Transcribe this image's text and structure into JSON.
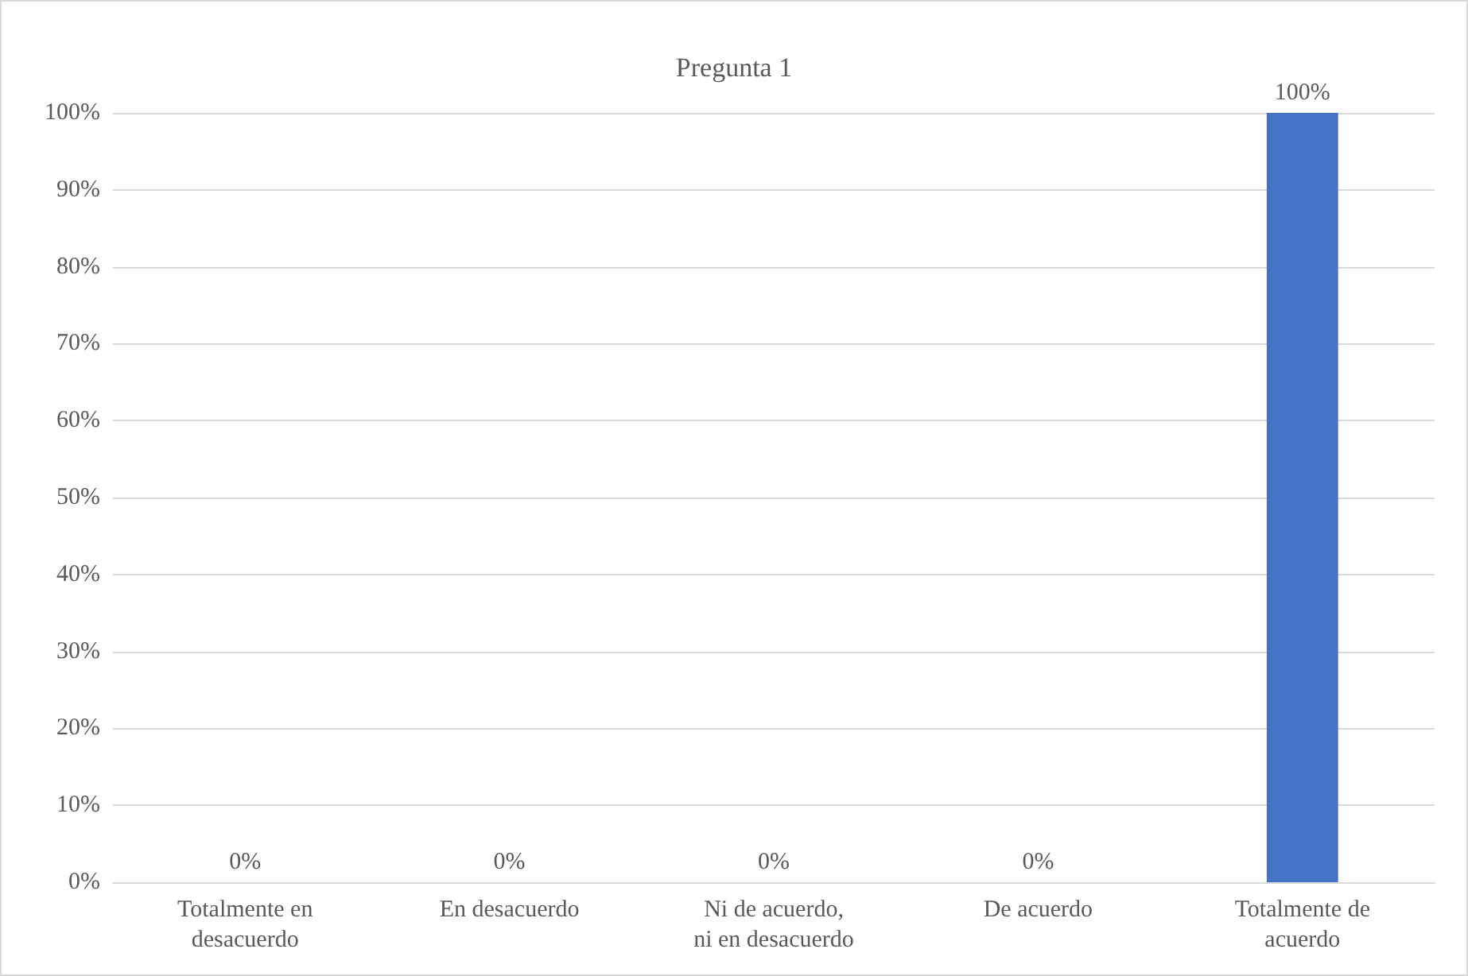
{
  "chart_data": {
    "type": "bar",
    "title": "Pregunta 1",
    "categories": [
      "Totalmente en\ndesacuerdo",
      "En desacuerdo",
      "Ni de acuerdo,\nni en desacuerdo",
      "De acuerdo",
      "Totalmente de\nacuerdo"
    ],
    "values": [
      0,
      0,
      0,
      0,
      100
    ],
    "value_labels": [
      "0%",
      "0%",
      "0%",
      "0%",
      "100%"
    ],
    "color": "#4472c4",
    "ylim": [
      0,
      100
    ],
    "yticks": [
      {
        "value": 0,
        "label": "0%"
      },
      {
        "value": 10,
        "label": "10%"
      },
      {
        "value": 20,
        "label": "20%"
      },
      {
        "value": 30,
        "label": "30%"
      },
      {
        "value": 40,
        "label": "40%"
      },
      {
        "value": 50,
        "label": "50%"
      },
      {
        "value": 60,
        "label": "60%"
      },
      {
        "value": 70,
        "label": "70%"
      },
      {
        "value": 80,
        "label": "80%"
      },
      {
        "value": 90,
        "label": "90%"
      },
      {
        "value": 100,
        "label": "100%"
      }
    ],
    "grid": "y"
  }
}
